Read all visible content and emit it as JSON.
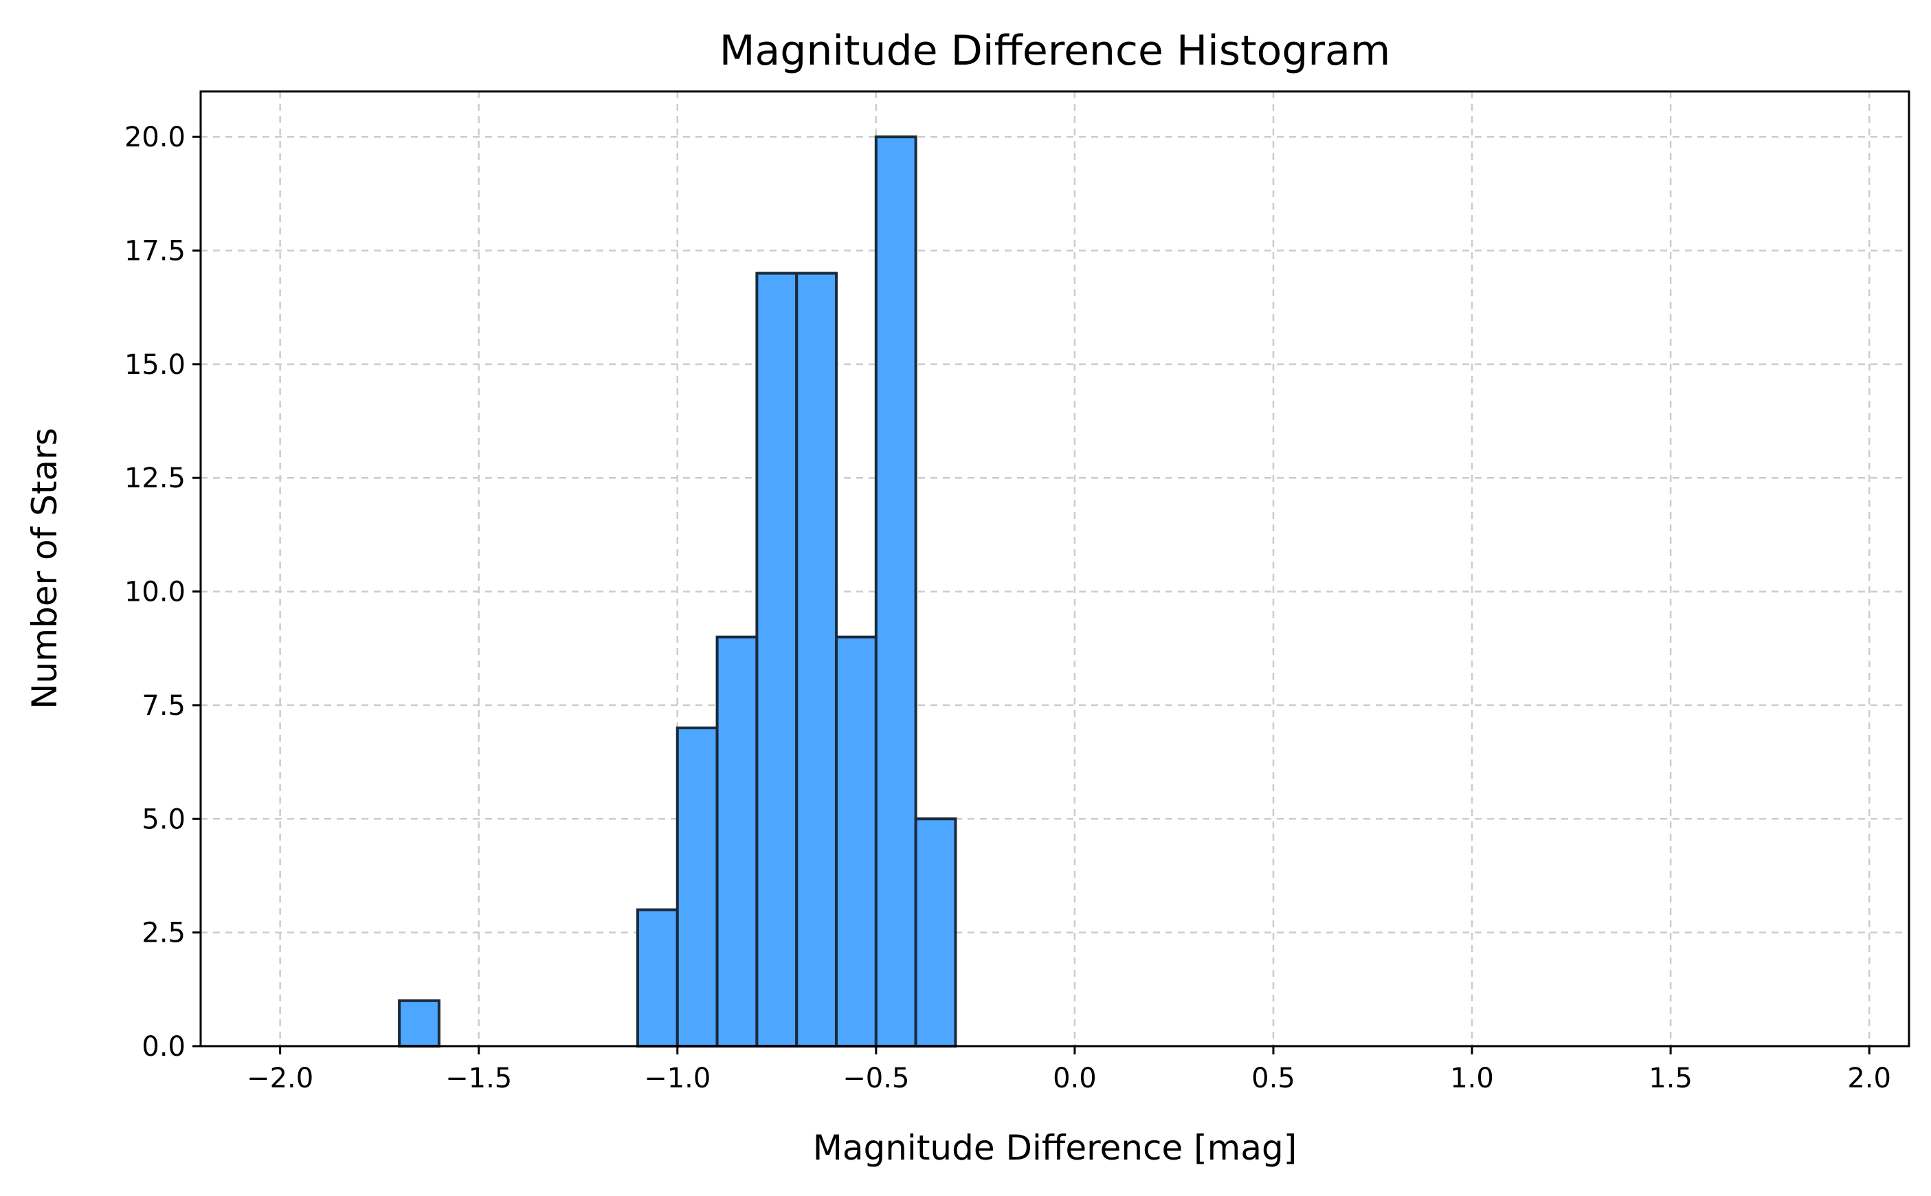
{
  "chart_data": {
    "type": "bar",
    "title": "Magnitude Difference Histogram",
    "xlabel": "Magnitude Difference [mag]",
    "ylabel": "Number of Stars",
    "xlim": [
      -2.2,
      2.1
    ],
    "ylim": [
      0,
      21
    ],
    "grid": true,
    "bar_color": "#4da6ff",
    "edge_color": "#1a2a3a",
    "bin_width": 0.1,
    "bins": [
      {
        "left": -1.7,
        "count": 1
      },
      {
        "left": -1.1,
        "count": 3
      },
      {
        "left": -1.0,
        "count": 7
      },
      {
        "left": -0.9,
        "count": 9
      },
      {
        "left": -0.8,
        "count": 17
      },
      {
        "left": -0.7,
        "count": 17
      },
      {
        "left": -0.6,
        "count": 9
      },
      {
        "left": -0.5,
        "count": 20
      },
      {
        "left": -0.4,
        "count": 5
      }
    ],
    "x_ticks": [
      {
        "value": -2.0,
        "label": "−2.0"
      },
      {
        "value": -1.5,
        "label": "−1.5"
      },
      {
        "value": -1.0,
        "label": "−1.0"
      },
      {
        "value": -0.5,
        "label": "−0.5"
      },
      {
        "value": 0.0,
        "label": "0.0"
      },
      {
        "value": 0.5,
        "label": "0.5"
      },
      {
        "value": 1.0,
        "label": "1.0"
      },
      {
        "value": 1.5,
        "label": "1.5"
      },
      {
        "value": 2.0,
        "label": "2.0"
      }
    ],
    "y_ticks": [
      {
        "value": 0.0,
        "label": "0.0"
      },
      {
        "value": 2.5,
        "label": "2.5"
      },
      {
        "value": 5.0,
        "label": "5.0"
      },
      {
        "value": 7.5,
        "label": "7.5"
      },
      {
        "value": 10.0,
        "label": "10.0"
      },
      {
        "value": 12.5,
        "label": "12.5"
      },
      {
        "value": 15.0,
        "label": "15.0"
      },
      {
        "value": 17.5,
        "label": "17.5"
      },
      {
        "value": 20.0,
        "label": "20.0"
      }
    ]
  }
}
